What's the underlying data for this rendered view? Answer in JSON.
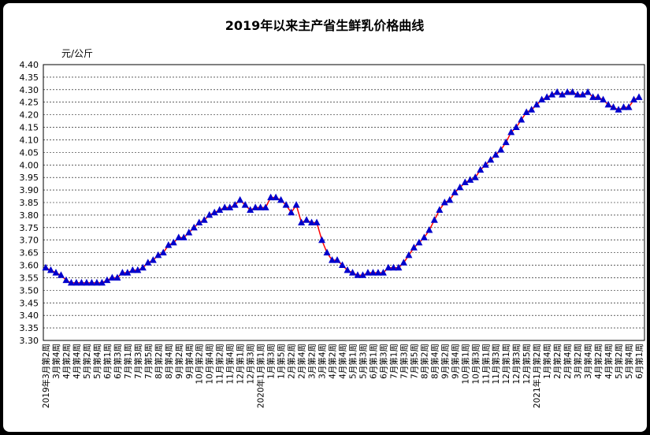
{
  "chart_data": {
    "type": "line",
    "title": "2019年以来主产省生鲜乳价格曲线",
    "y_label": "元/公斤",
    "categories": [
      "2019年3月第2周",
      null,
      "3月第4周",
      null,
      "4月第2周",
      null,
      "4月第4周",
      null,
      "5月第2周",
      null,
      "5月第4周",
      null,
      "6月第1周",
      null,
      "6月第3周",
      null,
      "7月第1周",
      null,
      "7月第3周",
      null,
      "7月第5周",
      null,
      "8月第2周",
      null,
      "8月第4周",
      null,
      "9月第2周",
      null,
      "9月第4周",
      null,
      "10月第2周",
      null,
      "10月第4周",
      null,
      "11月第2周",
      null,
      "11月第4周",
      null,
      "12月第1周",
      null,
      "12月第3周",
      null,
      "2020年1月第1周",
      null,
      "1月第3周",
      null,
      "1月第5周",
      null,
      "2月第2周",
      null,
      "2月第4周",
      null,
      "3月第2周",
      null,
      "3月第4周",
      null,
      "4月第2周",
      null,
      "4月第4周",
      null,
      "5月第1周",
      null,
      "5月第3周",
      null,
      "6月第1周",
      null,
      "6月第3周",
      null,
      "7月第1周",
      null,
      "7月第3周",
      null,
      "7月第5周",
      null,
      "8月第2周",
      null,
      "8月第4周",
      null,
      "9月第2周",
      null,
      "9月第4周",
      null,
      "10月第1周",
      null,
      "10月第3周",
      null,
      "11月第1周",
      null,
      "11月第3周",
      null,
      "12月第1周",
      null,
      "12月第3周",
      null,
      "12月第5周",
      null,
      "2021年1月第2周",
      null,
      "1月第4周",
      null,
      "2月第2周",
      null,
      "2月第4周",
      null,
      "3月第2周",
      null,
      "3月第4周",
      null,
      "4月第2周",
      null,
      "4月第4周",
      null,
      "5月第2周",
      null,
      "5月第4周",
      null,
      "6月第1周"
    ],
    "series": [
      {
        "name": "生鲜乳价格",
        "color": "#ff0000",
        "marker_color": "#0000cc",
        "values": [
          3.59,
          3.58,
          3.57,
          3.56,
          3.54,
          3.53,
          3.53,
          3.53,
          3.53,
          3.53,
          3.53,
          3.53,
          3.54,
          3.55,
          3.55,
          3.57,
          3.57,
          3.58,
          3.58,
          3.59,
          3.61,
          3.62,
          3.64,
          3.65,
          3.68,
          3.69,
          3.71,
          3.71,
          3.73,
          3.75,
          3.77,
          3.78,
          3.8,
          3.81,
          3.82,
          3.83,
          3.83,
          3.84,
          3.86,
          3.84,
          3.82,
          3.83,
          3.83,
          3.83,
          3.87,
          3.87,
          3.86,
          3.84,
          3.81,
          3.84,
          3.77,
          3.78,
          3.77,
          3.77,
          3.7,
          3.65,
          3.62,
          3.62,
          3.6,
          3.58,
          3.57,
          3.56,
          3.56,
          3.57,
          3.57,
          3.57,
          3.57,
          3.59,
          3.59,
          3.59,
          3.61,
          3.64,
          3.67,
          3.69,
          3.71,
          3.74,
          3.78,
          3.82,
          3.85,
          3.86,
          3.89,
          3.91,
          3.93,
          3.94,
          3.95,
          3.98,
          4.0,
          4.02,
          4.04,
          4.06,
          4.09,
          4.13,
          4.15,
          4.18,
          4.21,
          4.22,
          4.24,
          4.26,
          4.27,
          4.28,
          4.29,
          4.28,
          4.29,
          4.29,
          4.28,
          4.28,
          4.29,
          4.27,
          4.27,
          4.26,
          4.24,
          4.23,
          4.22,
          4.23,
          4.23,
          4.26,
          4.27
        ]
      }
    ],
    "ylim": [
      3.3,
      4.4
    ],
    "yticks": [
      {
        "value": 3.3,
        "label": "3.30"
      },
      {
        "value": 3.35,
        "label": "3.35"
      },
      {
        "value": 3.4,
        "label": "3.40"
      },
      {
        "value": 3.45,
        "label": "3.45"
      },
      {
        "value": 3.5,
        "label": "3.50"
      },
      {
        "value": 3.55,
        "label": "3.55"
      },
      {
        "value": 3.6,
        "label": "3.60"
      },
      {
        "value": 3.65,
        "label": "3.65"
      },
      {
        "value": 3.7,
        "label": "3.70"
      },
      {
        "value": 3.75,
        "label": "3.75"
      },
      {
        "value": 3.8,
        "label": "3.80"
      },
      {
        "value": 3.85,
        "label": "3.85"
      },
      {
        "value": 3.9,
        "label": "3.90"
      },
      {
        "value": 3.95,
        "label": "3.95"
      },
      {
        "value": 4.0,
        "label": "4.00"
      },
      {
        "value": 4.05,
        "label": "4.05"
      },
      {
        "value": 4.1,
        "label": "4.10"
      },
      {
        "value": 4.15,
        "label": "4.15"
      },
      {
        "value": 4.2,
        "label": "4.20"
      },
      {
        "value": 4.25,
        "label": "4.25"
      },
      {
        "value": 4.3,
        "label": "4.30"
      },
      {
        "value": 4.35,
        "label": "4.35"
      },
      {
        "value": 4.4,
        "label": "4.40"
      }
    ],
    "grid": true
  }
}
